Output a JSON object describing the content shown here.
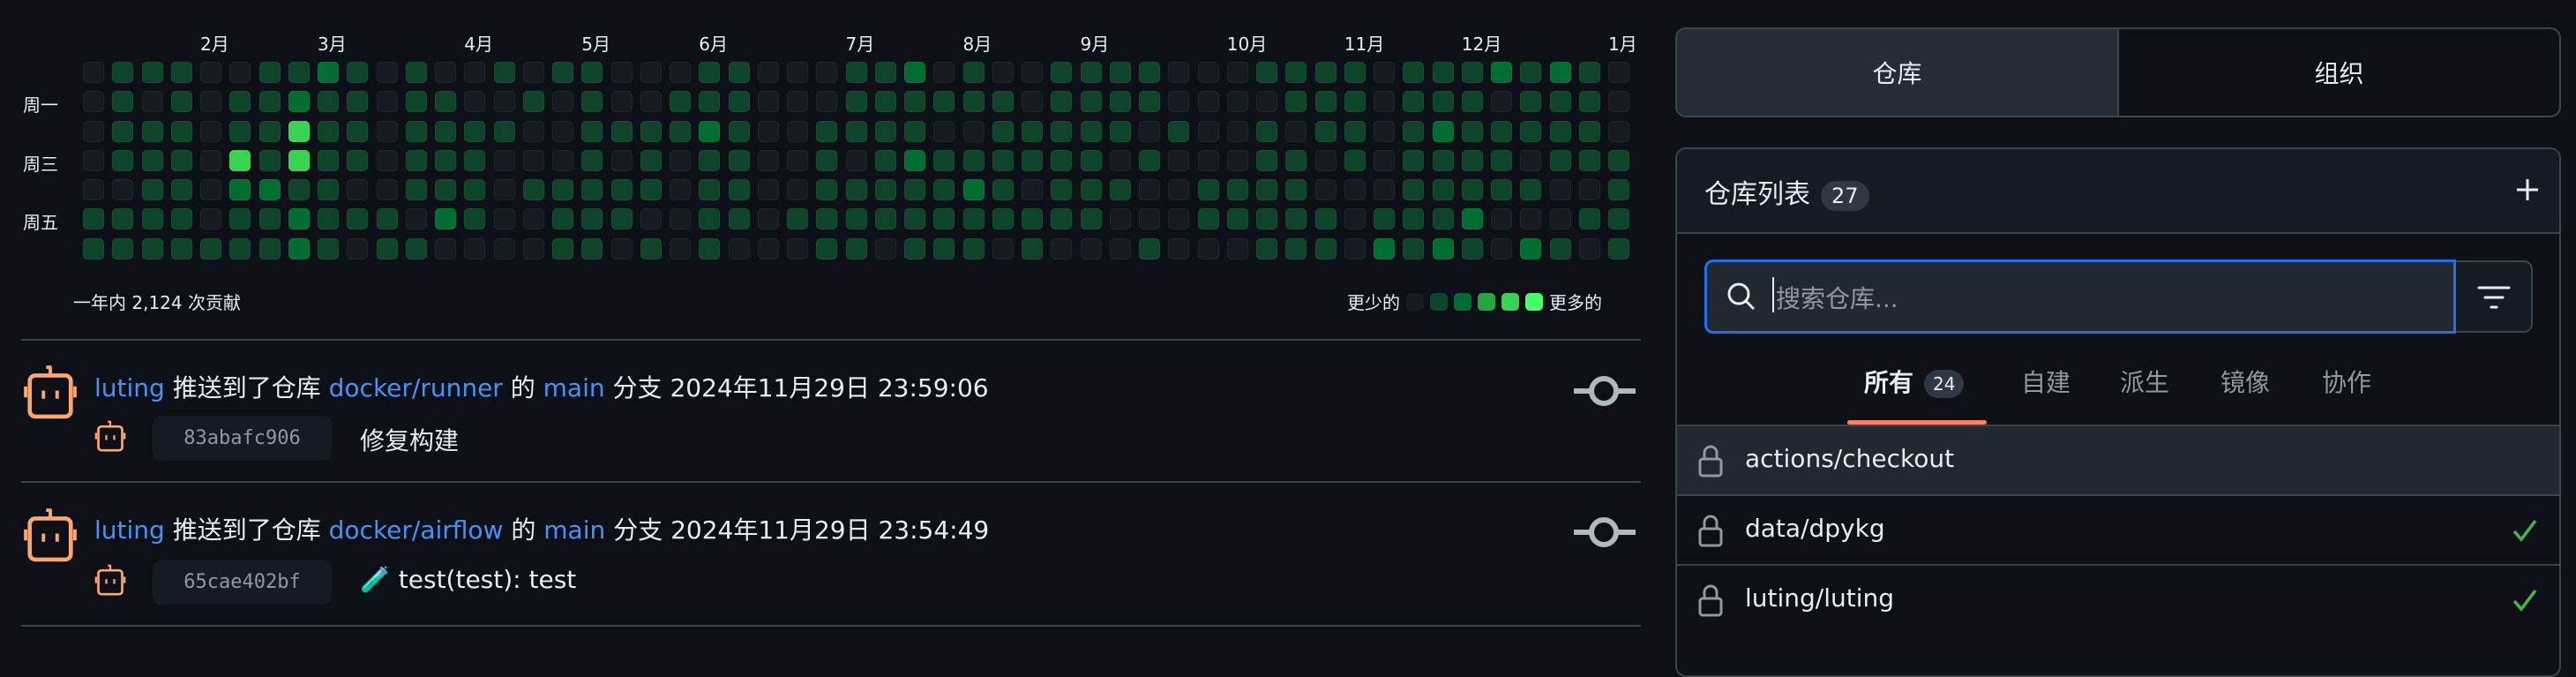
{
  "contributions": {
    "months": [
      {
        "label": "2月",
        "week": 4
      },
      {
        "label": "3月",
        "week": 8
      },
      {
        "label": "4月",
        "week": 13
      },
      {
        "label": "5月",
        "week": 17
      },
      {
        "label": "6月",
        "week": 21
      },
      {
        "label": "7月",
        "week": 26
      },
      {
        "label": "8月",
        "week": 30
      },
      {
        "label": "9月",
        "week": 34
      },
      {
        "label": "10月",
        "week": 39
      },
      {
        "label": "11月",
        "week": 43
      },
      {
        "label": "12月",
        "week": 47
      },
      {
        "label": "1月",
        "week": 52
      }
    ],
    "day_labels": [
      {
        "label": "周一",
        "row": 1
      },
      {
        "label": "周三",
        "row": 3
      },
      {
        "label": "周五",
        "row": 5
      }
    ],
    "levels": [
      [
        0,
        1,
        1,
        1,
        0,
        0,
        1,
        1,
        2,
        1,
        0,
        1,
        0,
        0,
        1,
        0,
        1,
        1,
        0,
        0,
        0,
        1,
        1,
        0,
        0,
        0,
        1,
        1,
        2,
        0,
        1,
        0,
        0,
        1,
        1,
        1,
        1,
        0,
        0,
        0,
        1,
        1,
        1,
        1,
        0,
        1,
        1,
        1,
        2,
        1,
        2,
        1,
        0
      ],
      [
        0,
        1,
        0,
        1,
        0,
        1,
        1,
        2,
        1,
        1,
        0,
        1,
        1,
        0,
        0,
        1,
        0,
        1,
        0,
        0,
        1,
        1,
        1,
        0,
        0,
        0,
        1,
        1,
        1,
        1,
        1,
        1,
        0,
        1,
        1,
        1,
        1,
        0,
        0,
        0,
        0,
        1,
        1,
        1,
        0,
        1,
        1,
        1,
        0,
        1,
        1,
        1,
        0
      ],
      [
        0,
        1,
        1,
        1,
        0,
        1,
        1,
        4,
        1,
        1,
        0,
        1,
        1,
        1,
        1,
        0,
        0,
        1,
        1,
        1,
        1,
        2,
        1,
        0,
        0,
        1,
        1,
        1,
        1,
        0,
        0,
        1,
        1,
        1,
        1,
        1,
        0,
        1,
        0,
        0,
        1,
        0,
        1,
        1,
        0,
        1,
        2,
        1,
        1,
        1,
        1,
        1,
        0
      ],
      [
        0,
        1,
        1,
        1,
        0,
        4,
        1,
        4,
        1,
        1,
        0,
        1,
        1,
        1,
        0,
        0,
        0,
        1,
        0,
        1,
        0,
        1,
        1,
        0,
        0,
        1,
        0,
        1,
        2,
        1,
        1,
        1,
        1,
        1,
        1,
        0,
        1,
        0,
        0,
        0,
        1,
        1,
        0,
        1,
        0,
        1,
        1,
        1,
        1,
        0,
        1,
        1,
        1
      ],
      [
        0,
        0,
        1,
        1,
        0,
        2,
        2,
        1,
        1,
        0,
        0,
        1,
        1,
        1,
        0,
        1,
        1,
        1,
        1,
        1,
        0,
        1,
        1,
        0,
        0,
        1,
        1,
        1,
        1,
        1,
        2,
        1,
        0,
        1,
        1,
        1,
        0,
        0,
        1,
        1,
        1,
        1,
        0,
        0,
        0,
        1,
        1,
        1,
        1,
        1,
        0,
        0,
        1
      ],
      [
        1,
        1,
        1,
        1,
        0,
        1,
        1,
        2,
        1,
        1,
        1,
        0,
        2,
        1,
        0,
        0,
        1,
        1,
        1,
        0,
        0,
        1,
        1,
        0,
        1,
        1,
        1,
        1,
        1,
        1,
        1,
        1,
        1,
        1,
        1,
        0,
        0,
        0,
        1,
        1,
        1,
        1,
        1,
        0,
        1,
        1,
        1,
        2,
        0,
        0,
        0,
        1,
        1
      ],
      [
        1,
        1,
        1,
        1,
        1,
        1,
        1,
        2,
        1,
        0,
        1,
        1,
        0,
        0,
        0,
        0,
        1,
        1,
        0,
        1,
        0,
        1,
        0,
        0,
        0,
        1,
        1,
        0,
        1,
        1,
        1,
        0,
        1,
        0,
        0,
        0,
        1,
        0,
        0,
        0,
        1,
        1,
        1,
        0,
        2,
        1,
        2,
        1,
        0,
        2,
        1,
        0,
        1
      ]
    ],
    "level_colors": [
      "#161b22",
      "#0e4429",
      "#006d32",
      "#26a641",
      "#39d353",
      "#44ff66"
    ],
    "total_text": "一年内 2,124 次贡献",
    "legend_less": "更少的",
    "legend_more": "更多的"
  },
  "feed": [
    {
      "user": "luting",
      "action": "推送到了仓库",
      "repo": "docker/runner",
      "of": "的",
      "branch": "main",
      "branch_suffix": "分支",
      "time": "2024年11月29日 23:59:06",
      "sha": "83abafc906",
      "emoji": "",
      "message": "修复构建"
    },
    {
      "user": "luting",
      "action": "推送到了仓库",
      "repo": "docker/airflow",
      "of": "的",
      "branch": "main",
      "branch_suffix": "分支",
      "time": "2024年11月29日 23:54:49",
      "sha": "65cae402bf",
      "emoji": "🧪",
      "message": "test(test): test"
    }
  ],
  "sidebar": {
    "tabs": [
      {
        "label": "仓库",
        "active": true
      },
      {
        "label": "组织",
        "active": false
      }
    ],
    "repo_list_title": "仓库列表",
    "repo_count": "27",
    "search_placeholder": "搜索仓库...",
    "filters": [
      {
        "label": "所有",
        "count": "24",
        "active": true
      },
      {
        "label": "自建"
      },
      {
        "label": "派生"
      },
      {
        "label": "镜像"
      },
      {
        "label": "协作"
      }
    ],
    "repos": [
      {
        "name": "actions/checkout",
        "checked": false
      },
      {
        "name": "data/dpykg",
        "checked": true
      },
      {
        "name": "luting/luting",
        "checked": true
      }
    ],
    "colors": {
      "accent": "#1f6feb",
      "tab_underline": "#f78166",
      "check": "#3fb950",
      "link": "#4493f8"
    }
  }
}
